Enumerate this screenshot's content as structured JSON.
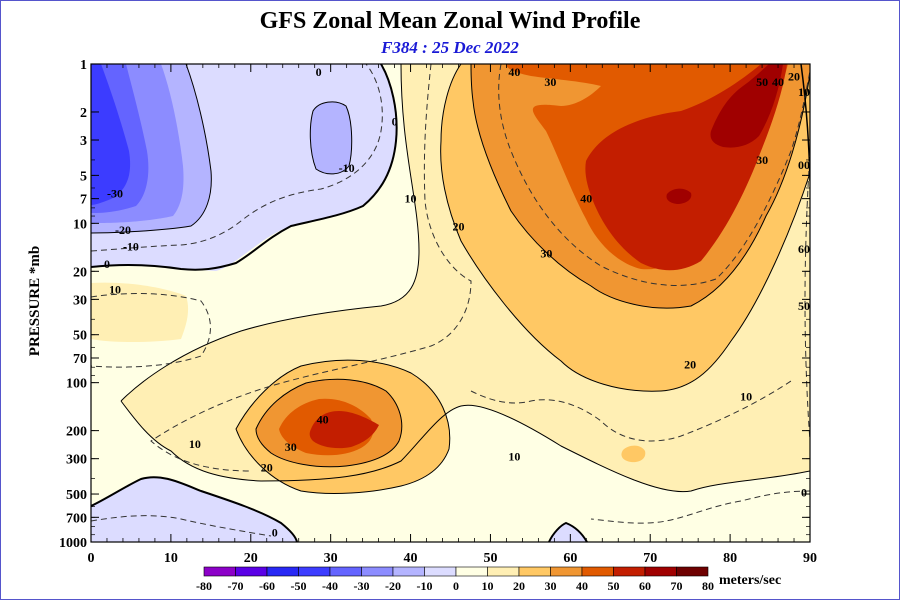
{
  "chart_data": {
    "type": "heatmap",
    "title": "GFS Zonal Mean Zonal Wind Profile",
    "subtitle": "F384 : 25 Dec 2022",
    "ylabel": "PRESSURE *mb",
    "xlabel": "",
    "xlim": [
      0,
      90
    ],
    "ylim": [
      1000,
      1
    ],
    "y_scale": "log",
    "grid": false,
    "x_ticks": [
      0,
      10,
      20,
      30,
      40,
      50,
      60,
      70,
      80,
      90
    ],
    "y_ticks": [
      1,
      2,
      3,
      5,
      7,
      10,
      20,
      30,
      50,
      70,
      100,
      200,
      300,
      500,
      700,
      1000
    ],
    "colorbar": {
      "unit_label": "meters/sec",
      "levels": [
        -80,
        -70,
        -60,
        -50,
        -40,
        -30,
        -20,
        -10,
        0,
        10,
        20,
        30,
        40,
        50,
        60,
        70,
        80
      ],
      "colors": [
        "#8c00c8",
        "#5a00e6",
        "#2828f5",
        "#3c3cff",
        "#6464ff",
        "#8c8cff",
        "#b4b4ff",
        "#dcdcff",
        "#ffffe4",
        "#ffefb4",
        "#ffc864",
        "#f09632",
        "#e15a00",
        "#c31e00",
        "#a00000",
        "#6e0000"
      ]
    },
    "contour_labels": [
      {
        "text": "40",
        "lat": 53,
        "p": 1
      },
      {
        "text": "30",
        "lat": 57.5,
        "p": 1.3
      },
      {
        "text": "0",
        "lat": 28.5,
        "p": 1
      },
      {
        "text": "50",
        "lat": 84,
        "p": 1.3
      },
      {
        "text": "40",
        "lat": 86,
        "p": 1.3
      },
      {
        "text": "20",
        "lat": 88,
        "p": 1.2
      },
      {
        "text": "10",
        "lat": 89.5,
        "p": 1.5
      },
      {
        "text": "0",
        "lat": 38,
        "p": 2.3
      },
      {
        "text": "-10",
        "lat": 32,
        "p": 4.5
      },
      {
        "text": "10",
        "lat": 40,
        "p": 7
      },
      {
        "text": "40",
        "lat": 62,
        "p": 7
      },
      {
        "text": "30",
        "lat": 84,
        "p": 4
      },
      {
        "text": "00",
        "lat": 90,
        "p": 4.3
      },
      {
        "text": "-30",
        "lat": 3,
        "p": 6.5
      },
      {
        "text": "-20",
        "lat": 4,
        "p": 11
      },
      {
        "text": "-10",
        "lat": 5,
        "p": 14
      },
      {
        "text": "0",
        "lat": 2,
        "p": 18
      },
      {
        "text": "10",
        "lat": 3,
        "p": 26
      },
      {
        "text": "20",
        "lat": 46,
        "p": 10.5
      },
      {
        "text": "30",
        "lat": 57,
        "p": 15.5
      },
      {
        "text": "60",
        "lat": 90,
        "p": 14.5
      },
      {
        "text": "50",
        "lat": 90,
        "p": 33
      },
      {
        "text": "20",
        "lat": 75,
        "p": 77
      },
      {
        "text": "10",
        "lat": 82,
        "p": 122
      },
      {
        "text": "40",
        "lat": 29,
        "p": 170
      },
      {
        "text": "30",
        "lat": 25,
        "p": 253
      },
      {
        "text": "10",
        "lat": 13,
        "p": 242
      },
      {
        "text": "20",
        "lat": 22,
        "p": 340
      },
      {
        "text": "10",
        "lat": 53,
        "p": 290
      },
      {
        "text": "0",
        "lat": 90,
        "p": 490
      },
      {
        "text": "0",
        "lat": 23,
        "p": 870
      }
    ]
  }
}
